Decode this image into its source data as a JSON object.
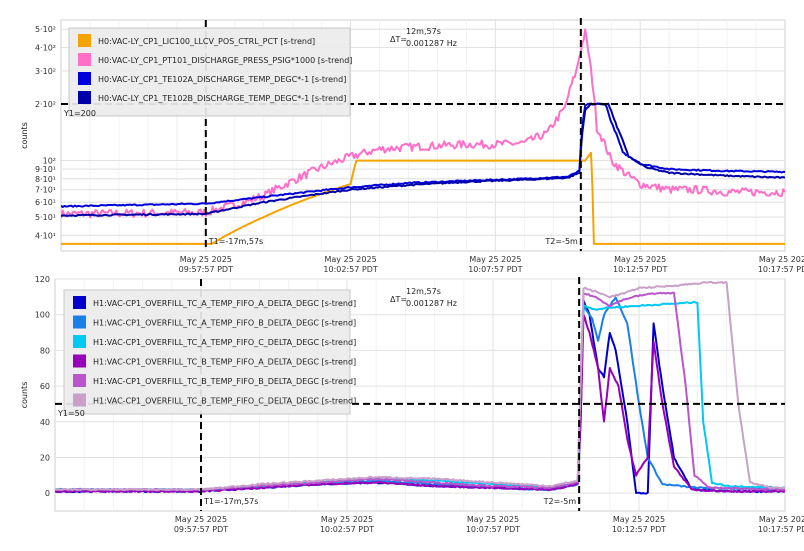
{
  "chart_data": [
    {
      "type": "line",
      "yscale": "log",
      "ylabel": "counts",
      "ylim": [
        33,
        560
      ],
      "yticks": [
        {
          "v": 40,
          "label": "4·10¹"
        },
        {
          "v": 50,
          "label": "5·10¹"
        },
        {
          "v": 60,
          "label": "6·10¹"
        },
        {
          "v": 70,
          "label": "7·10¹"
        },
        {
          "v": 80,
          "label": "8·10¹"
        },
        {
          "v": 90,
          "label": "9·10¹"
        },
        {
          "v": 100,
          "label": "10²"
        },
        {
          "v": 200,
          "label": "2·10²"
        },
        {
          "v": 300,
          "label": "3·10²"
        },
        {
          "v": 400,
          "label": "4·10²"
        },
        {
          "v": 500,
          "label": "5·10²"
        }
      ],
      "xlim": [
        "2025-05-25T09:52:57",
        "2025-05-25T10:17:57"
      ],
      "xticks": [
        {
          "t": "2025-05-25T09:57:57",
          "line1": "May 25 2025",
          "line2": "09:57:57 PDT"
        },
        {
          "t": "2025-05-25T10:02:57",
          "line1": "May 25 2025",
          "line2": "10:02:57 PDT"
        },
        {
          "t": "2025-05-25T10:07:57",
          "line1": "May 25 2025",
          "line2": "10:07:57 PDT"
        },
        {
          "t": "2025-05-25T10:12:57",
          "line1": "May 25 2025",
          "line2": "10:12:57 PDT"
        },
        {
          "t": "2025-05-25T10:17:57",
          "line1": "May 25 2025",
          "line2": "10:17:57 PDT"
        }
      ],
      "grid": true,
      "legend_position": "top-left",
      "cursor_t1": {
        "t": "2025-05-25T09:57:57",
        "label": "T1=-17m,57s"
      },
      "cursor_t2": {
        "t": "2025-05-25T10:10:54",
        "label": "T2=-5m"
      },
      "cursor_y1": {
        "v": 200,
        "label": "Y1=200"
      },
      "delta_label": "ΔT=",
      "delta_time": "12m,57s",
      "delta_freq": "0.001287 Hz",
      "series": [
        {
          "name": "H0:VAC-LY_CP1_LIC100_LLCV_POS_CTRL_PCT [s-trend]",
          "color": "#f5a300",
          "noise": 0,
          "points": [
            [
              0,
              36
            ],
            [
              5,
              36
            ],
            [
              5.2,
              36
            ],
            [
              7,
              50
            ],
            [
              10,
              75
            ],
            [
              10.2,
              100
            ],
            [
              18.1,
              100
            ],
            [
              18.3,
              110
            ],
            [
              18.4,
              36
            ],
            [
              25,
              36
            ]
          ]
        },
        {
          "name": "H0:VAC-LY_CP1_PT101_DISCHARGE_PRESS_PSIG*1000 [s-trend]",
          "color": "#ff6ec7",
          "noise": 0.05,
          "points": [
            [
              0,
              52
            ],
            [
              5,
              53
            ],
            [
              6,
              58
            ],
            [
              7,
              65
            ],
            [
              8,
              78
            ],
            [
              9,
              92
            ],
            [
              10,
              105
            ],
            [
              11,
              115
            ],
            [
              12,
              118
            ],
            [
              13,
              120
            ],
            [
              14,
              122
            ],
            [
              15,
              122
            ],
            [
              16,
              124
            ],
            [
              16.8,
              140
            ],
            [
              17.4,
              190
            ],
            [
              17.8,
              300
            ],
            [
              18.1,
              480
            ],
            [
              18.3,
              300
            ],
            [
              18.5,
              150
            ],
            [
              19,
              100
            ],
            [
              19.5,
              85
            ],
            [
              20,
              75
            ],
            [
              21,
              70
            ],
            [
              22,
              70
            ],
            [
              23,
              68
            ],
            [
              24,
              68
            ],
            [
              25,
              68
            ]
          ]
        },
        {
          "name": "H0:VAC-LY_CP1_TE102A_DISCHARGE_TEMP_DEGC*-1 [s-trend]",
          "color": "#0000dd",
          "noise": 0.008,
          "points": [
            [
              0,
              57
            ],
            [
              5,
              59
            ],
            [
              7,
              64
            ],
            [
              10,
              72
            ],
            [
              12,
              76
            ],
            [
              14,
              78
            ],
            [
              16,
              80
            ],
            [
              17.5,
              82
            ],
            [
              17.9,
              88
            ],
            [
              18.0,
              150
            ],
            [
              18.1,
              195
            ],
            [
              18.2,
              200
            ],
            [
              18.8,
              200
            ],
            [
              19,
              160
            ],
            [
              19.4,
              110
            ],
            [
              20,
              96
            ],
            [
              21,
              90
            ],
            [
              23,
              88
            ],
            [
              25,
              87
            ]
          ]
        },
        {
          "name": "H0:VAC-LY_CP1_TE102B_DISCHARGE_TEMP_DEGC*-1 [s-trend]",
          "color": "#0000aa",
          "noise": 0.008,
          "points": [
            [
              0,
              51
            ],
            [
              5,
              52
            ],
            [
              7,
              60
            ],
            [
              10,
              70
            ],
            [
              12,
              74
            ],
            [
              14,
              77
            ],
            [
              16,
              79
            ],
            [
              17.5,
              81
            ],
            [
              17.9,
              86
            ],
            [
              18.0,
              140
            ],
            [
              18.1,
              185
            ],
            [
              18.3,
              200
            ],
            [
              18.9,
              200
            ],
            [
              19.2,
              150
            ],
            [
              19.6,
              105
            ],
            [
              20.2,
              92
            ],
            [
              21,
              86
            ],
            [
              23,
              83
            ],
            [
              25,
              81
            ]
          ]
        }
      ]
    },
    {
      "type": "line",
      "yscale": "linear",
      "ylabel": "counts",
      "ylim": [
        -10,
        120
      ],
      "yticks": [
        {
          "v": 0,
          "label": "0"
        },
        {
          "v": 20,
          "label": "20"
        },
        {
          "v": 40,
          "label": "40"
        },
        {
          "v": 60,
          "label": "60"
        },
        {
          "v": 80,
          "label": "80"
        },
        {
          "v": 100,
          "label": "100"
        },
        {
          "v": 120,
          "label": "120"
        }
      ],
      "xlim": [
        "2025-05-25T09:52:57",
        "2025-05-25T10:17:57"
      ],
      "xticks": [
        {
          "t": "2025-05-25T09:57:57",
          "line1": "May 25 2025",
          "line2": "09:57:57 PDT"
        },
        {
          "t": "2025-05-25T10:02:57",
          "line1": "May 25 2025",
          "line2": "10:02:57 PDT"
        },
        {
          "t": "2025-05-25T10:07:57",
          "line1": "May 25 2025",
          "line2": "10:07:57 PDT"
        },
        {
          "t": "2025-05-25T10:12:57",
          "line1": "May 25 2025",
          "line2": "10:12:57 PDT"
        },
        {
          "t": "2025-05-25T10:17:57",
          "line1": "May 25 2025",
          "line2": "10:17:57 PDT"
        }
      ],
      "grid": true,
      "legend_position": "top-left",
      "cursor_t1": {
        "t": "2025-05-25T09:57:57",
        "label": "T1=-17m,57s"
      },
      "cursor_t2": {
        "t": "2025-05-25T10:10:54",
        "label": "T2=-5m"
      },
      "cursor_y1": {
        "v": 50,
        "label": "Y1=50"
      },
      "delta_label": "ΔT=",
      "delta_time": "12m,57s",
      "delta_freq": "0.001287 Hz",
      "series": [
        {
          "name": "H1:VAC-CP1_OVERFILL_TC_A_TEMP_FIFO_A_DELTA_DEGC [s-trend]",
          "color": "#0000cc",
          "noise": 0.4,
          "points": [
            [
              0,
              1
            ],
            [
              5,
              1
            ],
            [
              7,
              3
            ],
            [
              9,
              5
            ],
            [
              11,
              6
            ],
            [
              13,
              4
            ],
            [
              15,
              3
            ],
            [
              17,
              2
            ],
            [
              17.9,
              5
            ],
            [
              18.0,
              40
            ],
            [
              18.1,
              108
            ],
            [
              18.3,
              100
            ],
            [
              18.6,
              70
            ],
            [
              18.8,
              65
            ],
            [
              19,
              90
            ],
            [
              19.2,
              80
            ],
            [
              19.6,
              40
            ],
            [
              19.9,
              0
            ],
            [
              20.3,
              0
            ],
            [
              20.5,
              95
            ],
            [
              20.8,
              60
            ],
            [
              21.2,
              20
            ],
            [
              21.8,
              2
            ],
            [
              23,
              1
            ],
            [
              25,
              1
            ]
          ]
        },
        {
          "name": "H1:VAC-CP1_OVERFILL_TC_A_TEMP_FIFO_B_DELTA_DEGC [s-trend]",
          "color": "#1a7fe8",
          "noise": 0.4,
          "points": [
            [
              0,
              2
            ],
            [
              5,
              2
            ],
            [
              7,
              3
            ],
            [
              9,
              5
            ],
            [
              11,
              7
            ],
            [
              13,
              5
            ],
            [
              15,
              3
            ],
            [
              17,
              2
            ],
            [
              17.9,
              5
            ],
            [
              18.0,
              50
            ],
            [
              18.1,
              105
            ],
            [
              18.4,
              98
            ],
            [
              18.6,
              85
            ],
            [
              18.8,
              100
            ],
            [
              19.2,
              110
            ],
            [
              19.6,
              95
            ],
            [
              20.0,
              50
            ],
            [
              20.3,
              20
            ],
            [
              20.8,
              5
            ],
            [
              22,
              3
            ],
            [
              25,
              2
            ]
          ]
        },
        {
          "name": "H1:VAC-CP1_OVERFILL_TC_A_TEMP_FIFO_C_DELTA_DEGC [s-trend]",
          "color": "#00c8f5",
          "noise": 0.4,
          "points": [
            [
              0,
              2
            ],
            [
              5,
              2
            ],
            [
              7,
              4
            ],
            [
              9,
              6
            ],
            [
              11,
              8
            ],
            [
              13,
              7
            ],
            [
              15,
              5
            ],
            [
              17,
              3
            ],
            [
              17.9,
              6
            ],
            [
              18.0,
              60
            ],
            [
              18.1,
              105
            ],
            [
              18.5,
              103
            ],
            [
              19,
              104
            ],
            [
              20,
              105
            ],
            [
              21,
              106
            ],
            [
              22.0,
              107
            ],
            [
              22.2,
              40
            ],
            [
              22.5,
              6
            ],
            [
              23,
              4
            ],
            [
              25,
              3
            ]
          ]
        },
        {
          "name": "H1:VAC-CP1_OVERFILL_TC_B_TEMP_FIFO_A_DELTA_DEGC [s-trend]",
          "color": "#9900bb",
          "noise": 0.4,
          "points": [
            [
              0,
              1
            ],
            [
              5,
              1
            ],
            [
              7,
              3
            ],
            [
              9,
              5
            ],
            [
              11,
              6
            ],
            [
              13,
              4
            ],
            [
              15,
              3
            ],
            [
              17,
              2
            ],
            [
              17.9,
              5
            ],
            [
              18.0,
              40
            ],
            [
              18.1,
              100
            ],
            [
              18.3,
              90
            ],
            [
              18.6,
              70
            ],
            [
              18.8,
              40
            ],
            [
              19,
              70
            ],
            [
              19.3,
              60
            ],
            [
              19.6,
              30
            ],
            [
              19.9,
              10
            ],
            [
              20.3,
              20
            ],
            [
              20.5,
              85
            ],
            [
              20.8,
              50
            ],
            [
              21.2,
              15
            ],
            [
              21.8,
              2
            ],
            [
              23,
              1
            ],
            [
              25,
              1
            ]
          ]
        },
        {
          "name": "H1:VAC-CP1_OVERFILL_TC_B_TEMP_FIFO_B_DELTA_DEGC [s-trend]",
          "color": "#bb55cc",
          "noise": 0.4,
          "points": [
            [
              0,
              2
            ],
            [
              5,
              2
            ],
            [
              7,
              4
            ],
            [
              9,
              6
            ],
            [
              11,
              8
            ],
            [
              13,
              6
            ],
            [
              15,
              4
            ],
            [
              17,
              3
            ],
            [
              17.9,
              6
            ],
            [
              18.0,
              60
            ],
            [
              18.1,
              112
            ],
            [
              18.5,
              110
            ],
            [
              19,
              105
            ],
            [
              19.4,
              108
            ],
            [
              19.8,
              110
            ],
            [
              20.5,
              112
            ],
            [
              21.2,
              112
            ],
            [
              21.6,
              60
            ],
            [
              21.9,
              10
            ],
            [
              22.4,
              3
            ],
            [
              25,
              2
            ]
          ]
        },
        {
          "name": "H1:VAC-CP1_OVERFILL_TC_B_TEMP_FIFO_C_DELTA_DEGC [s-trend]",
          "color": "#c8a0c8",
          "noise": 0.4,
          "points": [
            [
              0,
              2
            ],
            [
              5,
              2
            ],
            [
              7,
              5
            ],
            [
              9,
              7
            ],
            [
              11,
              9
            ],
            [
              13,
              8
            ],
            [
              15,
              6
            ],
            [
              17,
              4
            ],
            [
              17.9,
              7
            ],
            [
              18.0,
              60
            ],
            [
              18.1,
              115
            ],
            [
              18.5,
              113
            ],
            [
              19,
              110
            ],
            [
              19.5,
              112
            ],
            [
              20,
              115
            ],
            [
              21,
              116
            ],
            [
              22.3,
              118
            ],
            [
              23,
              118
            ],
            [
              23.4,
              50
            ],
            [
              23.8,
              6
            ],
            [
              24.5,
              3
            ],
            [
              25,
              3
            ]
          ]
        }
      ]
    }
  ]
}
